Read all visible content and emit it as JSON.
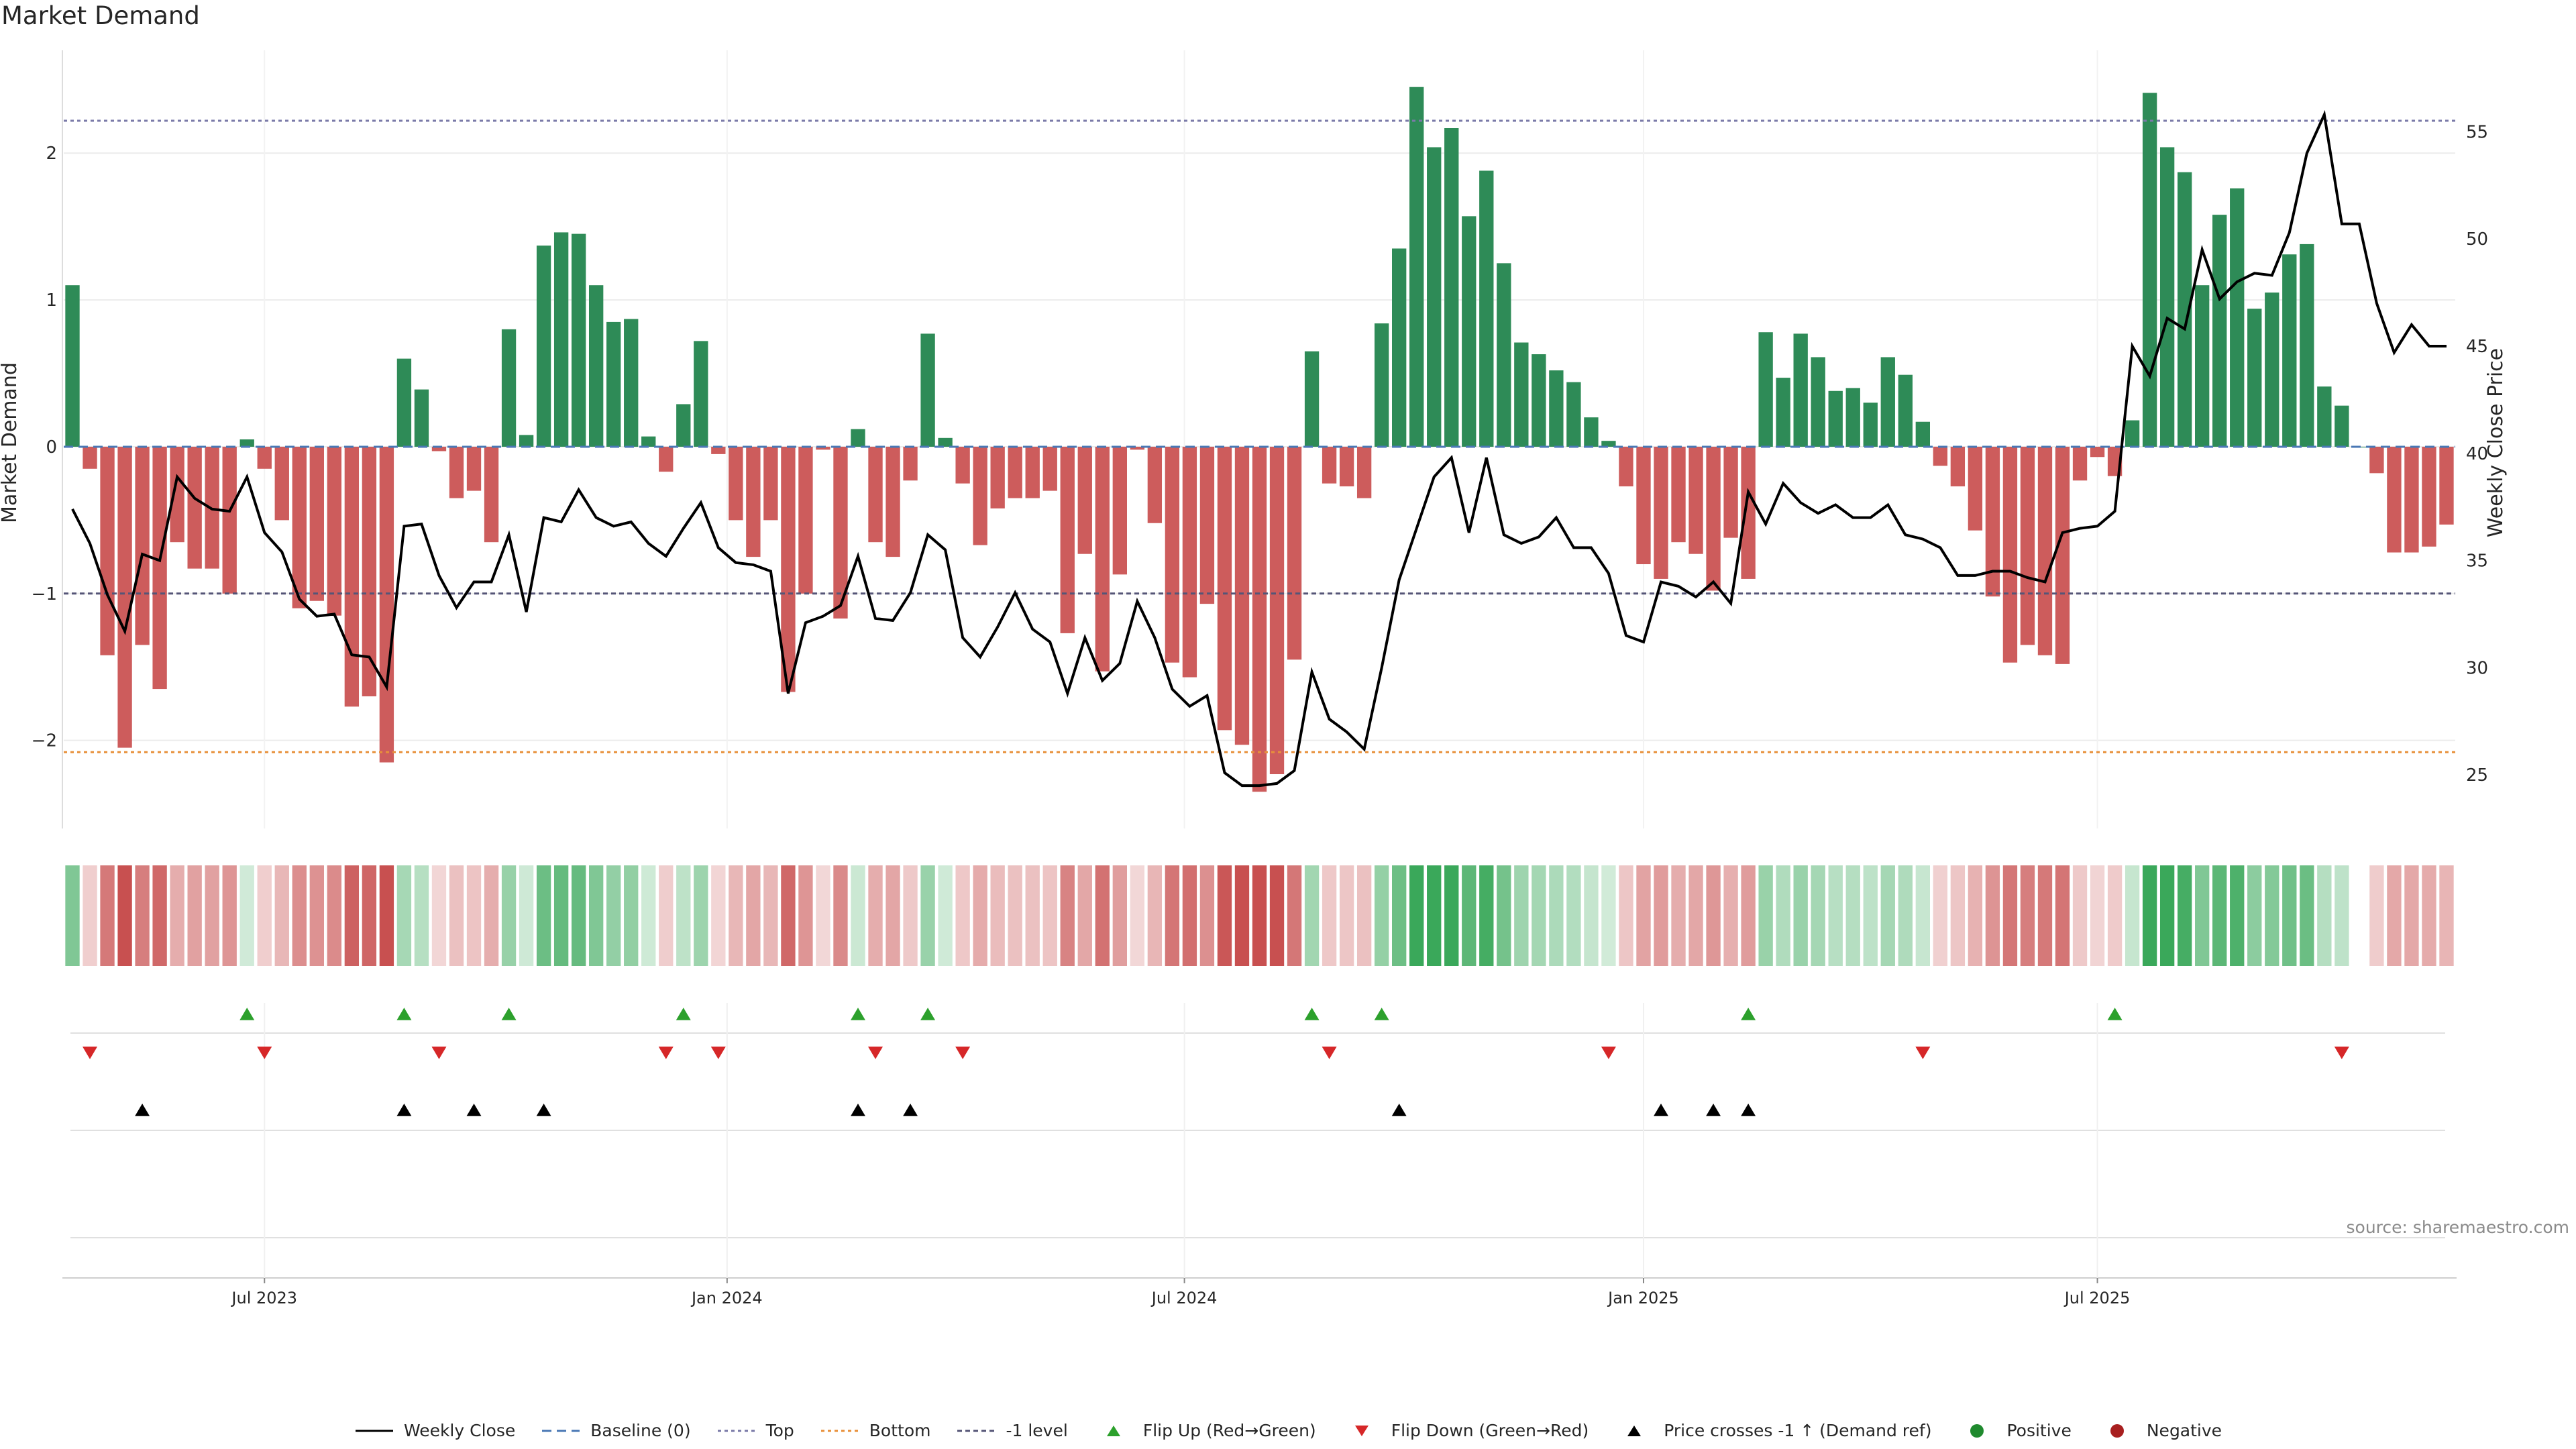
{
  "title": "Market Demand",
  "source": "source: sharemaestro.com",
  "colors": {
    "positive": "#2e8b57",
    "negative": "#cd5c5c",
    "price": "#000000",
    "flip_up": "#2ca02c",
    "flip_down": "#d62728",
    "top": "#7a7aa8",
    "bottom": "#e8903a",
    "minus1": "#555577"
  },
  "legend": [
    {
      "key": "price",
      "label": "Weekly Close"
    },
    {
      "key": "baseline",
      "label": "Baseline (0)"
    },
    {
      "key": "top",
      "label": "Top"
    },
    {
      "key": "bottom",
      "label": "Bottom"
    },
    {
      "key": "minus1",
      "label": "-1 level"
    },
    {
      "key": "flipup",
      "label": "Flip Up (Red→Green)"
    },
    {
      "key": "flipdown",
      "label": "Flip Down (Green→Red)"
    },
    {
      "key": "cross",
      "label": "Price crosses -1 ↑ (Demand ref)"
    },
    {
      "key": "pos",
      "label": "Positive"
    },
    {
      "key": "neg",
      "label": "Negative"
    }
  ],
  "chart_data": {
    "type": "bar",
    "title": "Market Demand",
    "ylabel": "Market Demand",
    "y2label": "Weekly Close Price",
    "ylim": [
      -2.6,
      2.7
    ],
    "y2lim": [
      22.5,
      58.8
    ],
    "yticks": [
      -2,
      -1,
      0,
      1,
      2
    ],
    "y2ticks": [
      25,
      30,
      35,
      40,
      45,
      50,
      55
    ],
    "top_level": 2.22,
    "bottom_level": -2.08,
    "minus1_level": -1.0,
    "xlim_week": [
      0,
      136
    ],
    "xticks": [
      {
        "week": 11,
        "label": "Jul 2023"
      },
      {
        "week": 37.5,
        "label": "Jan 2024"
      },
      {
        "week": 63.7,
        "label": "Jul 2024"
      },
      {
        "week": 90,
        "label": "Jan 2025"
      },
      {
        "week": 116,
        "label": "Jul 2025"
      }
    ],
    "demand": [
      1.1,
      -0.15,
      -1.42,
      -2.05,
      -1.35,
      -1.65,
      -0.65,
      -0.83,
      -0.83,
      -1.0,
      0.05,
      -0.15,
      -0.5,
      -1.1,
      -1.05,
      -1.15,
      -1.77,
      -1.7,
      -2.15,
      0.6,
      0.39,
      -0.03,
      -0.35,
      -0.3,
      -0.65,
      0.8,
      0.08,
      1.37,
      1.46,
      1.45,
      1.1,
      0.85,
      0.87,
      0.07,
      -0.17,
      0.29,
      0.72,
      -0.05,
      -0.5,
      -0.75,
      -0.5,
      -1.67,
      -1.0,
      -0.02,
      -1.17,
      0.12,
      -0.65,
      -0.75,
      -0.23,
      0.77,
      0.06,
      -0.25,
      -0.67,
      -0.42,
      -0.35,
      -0.35,
      -0.3,
      -1.27,
      -0.73,
      -1.53,
      -0.87,
      -0.02,
      -0.52,
      -1.47,
      -1.57,
      -1.07,
      -1.93,
      -2.03,
      -2.35,
      -2.23,
      -1.45,
      0.65,
      -0.25,
      -0.27,
      -0.35,
      0.84,
      1.35,
      2.45,
      2.04,
      2.17,
      1.57,
      1.88,
      1.25,
      0.71,
      0.63,
      0.52,
      0.44,
      0.2,
      0.04,
      -0.27,
      -0.8,
      -0.9,
      -0.65,
      -0.73,
      -0.98,
      -0.62,
      -0.9,
      0.78,
      0.47,
      0.77,
      0.61,
      0.38,
      0.4,
      0.3,
      0.61,
      0.49,
      0.17,
      -0.13,
      -0.27,
      -0.57,
      -1.02,
      -1.47,
      -1.35,
      -1.42,
      -1.48,
      -0.23,
      -0.07,
      -0.2,
      0.18,
      2.41,
      2.04,
      1.87,
      1.1,
      1.58,
      1.76,
      0.94,
      1.05,
      1.31,
      1.38,
      0.41,
      0.28,
      0,
      -0.18,
      -0.72,
      -0.72,
      -0.68,
      -0.53
    ],
    "price": [
      37.4,
      35.8,
      33.4,
      31.7,
      35.3,
      35.0,
      38.9,
      37.9,
      37.4,
      37.3,
      38.9,
      36.3,
      35.4,
      33.2,
      32.4,
      32.5,
      30.6,
      30.5,
      29.1,
      36.6,
      36.7,
      34.3,
      32.8,
      34.0,
      34.0,
      36.2,
      32.6,
      37.0,
      36.8,
      38.3,
      37.0,
      36.6,
      36.8,
      35.8,
      35.2,
      36.5,
      37.7,
      35.6,
      34.9,
      34.8,
      34.5,
      28.8,
      32.1,
      32.4,
      32.9,
      35.2,
      32.3,
      32.2,
      33.5,
      36.2,
      35.5,
      31.4,
      30.5,
      31.9,
      33.5,
      31.8,
      31.2,
      28.8,
      31.4,
      29.4,
      30.2,
      33.1,
      31.4,
      29.0,
      28.2,
      28.7,
      25.1,
      24.5,
      24.5,
      24.6,
      25.2,
      29.8,
      27.6,
      27.0,
      26.2,
      30.0,
      34.1,
      36.5,
      38.9,
      39.8,
      36.3,
      39.8,
      36.2,
      35.8,
      36.1,
      37.0,
      35.6,
      35.6,
      34.4,
      31.5,
      31.2,
      34.0,
      33.8,
      33.3,
      34.0,
      33.0,
      38.2,
      36.7,
      38.6,
      37.7,
      37.2,
      37.6,
      37.0,
      37.0,
      37.6,
      36.2,
      36.0,
      35.6,
      34.3,
      34.3,
      34.5,
      34.5,
      34.2,
      34.0,
      36.3,
      36.5,
      36.6,
      37.3,
      45.0,
      43.6,
      46.3,
      45.8,
      49.5,
      47.2,
      48.0,
      48.4,
      48.3,
      50.3,
      54.0,
      55.8,
      50.7,
      50.7,
      47.0,
      44.7,
      46.0,
      45.0,
      45.0
    ],
    "flip_up_weeks": [
      10,
      19,
      25,
      35,
      45,
      49,
      71,
      75,
      96,
      117
    ],
    "flip_down_weeks": [
      1,
      11,
      21,
      34,
      37,
      46,
      51,
      72,
      88,
      106,
      130
    ],
    "cross_weeks": [
      4,
      19,
      23,
      27,
      45,
      48,
      76,
      91,
      94,
      96
    ]
  }
}
